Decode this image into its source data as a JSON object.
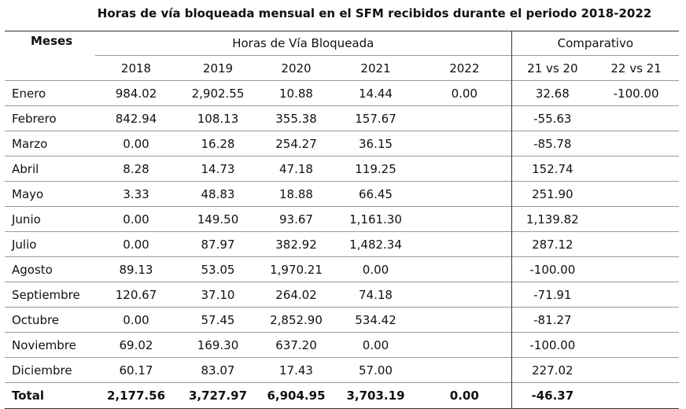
{
  "title": "Horas de vía bloqueada mensual en el SFM recibidos durante el periodo 2018-2022",
  "header": {
    "meses": "Meses",
    "group_horas": "Horas de Vía Bloqueada",
    "group_comp": "Comparativo",
    "cols": [
      "2018",
      "2019",
      "2020",
      "2021",
      "2022",
      "21 vs 20",
      "22 vs 21"
    ]
  },
  "rows": [
    {
      "month": "Enero",
      "v": [
        "984.02",
        "2,902.55",
        "10.88",
        "14.44",
        "0.00",
        "32.68",
        "-100.00"
      ]
    },
    {
      "month": "Febrero",
      "v": [
        "842.94",
        "108.13",
        "355.38",
        "157.67",
        "",
        "-55.63",
        ""
      ]
    },
    {
      "month": "Marzo",
      "v": [
        "0.00",
        "16.28",
        "254.27",
        "36.15",
        "",
        "-85.78",
        ""
      ]
    },
    {
      "month": "Abril",
      "v": [
        "8.28",
        "14.73",
        "47.18",
        "119.25",
        "",
        "152.74",
        ""
      ]
    },
    {
      "month": "Mayo",
      "v": [
        "3.33",
        "48.83",
        "18.88",
        "66.45",
        "",
        "251.90",
        ""
      ]
    },
    {
      "month": "Junio",
      "v": [
        "0.00",
        "149.50",
        "93.67",
        "1,161.30",
        "",
        "1,139.82",
        ""
      ]
    },
    {
      "month": "Julio",
      "v": [
        "0.00",
        "87.97",
        "382.92",
        "1,482.34",
        "",
        "287.12",
        ""
      ]
    },
    {
      "month": "Agosto",
      "v": [
        "89.13",
        "53.05",
        "1,970.21",
        "0.00",
        "",
        "-100.00",
        ""
      ]
    },
    {
      "month": "Septiembre",
      "v": [
        "120.67",
        "37.10",
        "264.02",
        "74.18",
        "",
        "-71.91",
        ""
      ]
    },
    {
      "month": "Octubre",
      "v": [
        "0.00",
        "57.45",
        "2,852.90",
        "534.42",
        "",
        "-81.27",
        ""
      ]
    },
    {
      "month": "Noviembre",
      "v": [
        "69.02",
        "169.30",
        "637.20",
        "0.00",
        "",
        "-100.00",
        ""
      ]
    },
    {
      "month": "Diciembre",
      "v": [
        "60.17",
        "83.07",
        "17.43",
        "57.00",
        "",
        "227.02",
        ""
      ]
    }
  ],
  "total": {
    "month": "Total",
    "v": [
      "2,177.56",
      "3,727.97",
      "6,904.95",
      "3,703.19",
      "0.00",
      "-46.37",
      ""
    ]
  }
}
